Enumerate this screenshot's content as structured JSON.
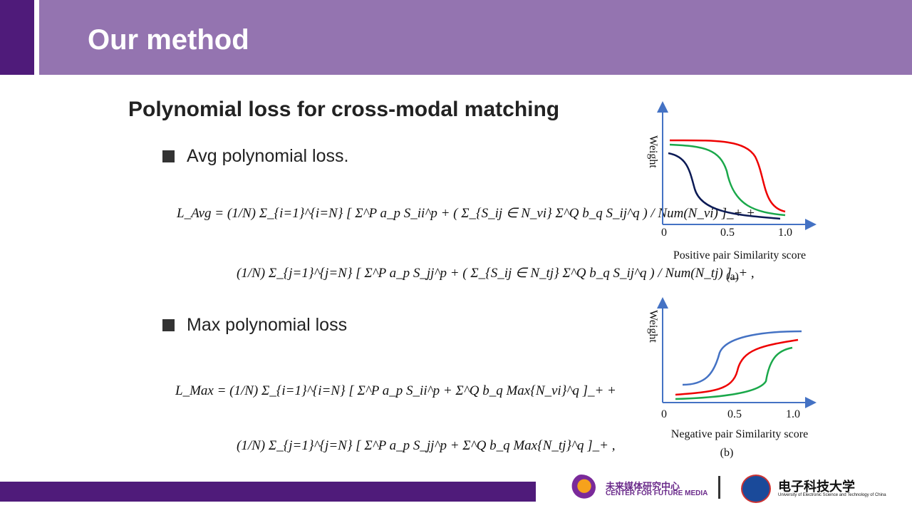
{
  "header": {
    "title": "Our method"
  },
  "section": {
    "title": "Polynomial loss for cross-modal matching"
  },
  "bullets": [
    "Avg polynomial loss.",
    "Max polynomial loss"
  ],
  "formulas": {
    "avg": [
      "L_Avg = (1/N) Σ_{i=1}^{i=N} [ Σ^P a_p S_ii^p + ( Σ_{S_ij ∈ N_vi} Σ^Q b_q S_ij^q ) / Num(N_vi) ]_+ +",
      "(1/N) Σ_{j=1}^{j=N} [ Σ^P a_p S_jj^p + ( Σ_{S_ij ∈ N_tj} Σ^Q b_q S_ij^q ) / Num(N_tj) ]_+ ,"
    ],
    "max": [
      "L_Max = (1/N) Σ_{i=1}^{i=N} [ Σ^P a_p S_ii^p + Σ^Q b_q Max{N_vi}^q ]_+ +",
      "(1/N) Σ_{j=1}^{j=N} [ Σ^P a_p S_jj^p + Σ^Q b_q Max{N_tj}^q ]_+ ,"
    ]
  },
  "figures": [
    {
      "y_label": "Weight",
      "ticks": [
        "0",
        "0.5",
        "1.0"
      ],
      "x_label": "Positive pair Similarity score",
      "caption": "(a)"
    },
    {
      "y_label": "Weight",
      "ticks": [
        "0",
        "0.5",
        "1.0"
      ],
      "x_label": "Negative pair Similarity score",
      "caption": "(b)"
    }
  ],
  "footer": {
    "lab_cn": "未来媒体研究中心",
    "lab_en": "CENTER FOR FUTURE MEDIA",
    "univ_cn": "电子科技大学",
    "univ_en": "University of Electronic Science and Technology of China"
  }
}
